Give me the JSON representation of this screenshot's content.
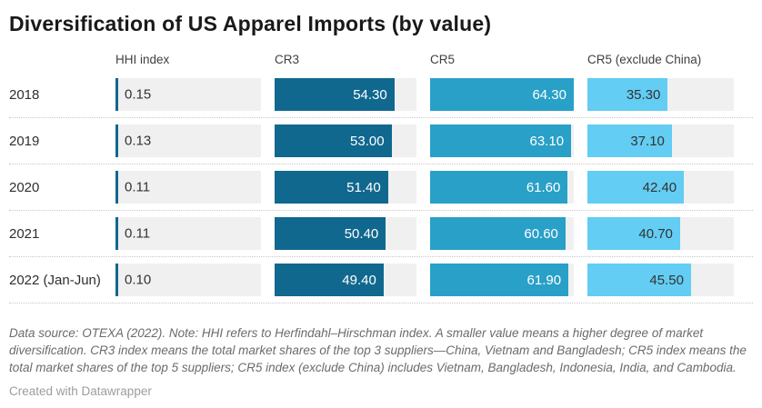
{
  "title": "Diversification of US Apparel Imports (by value)",
  "colors": {
    "cr3_bar": "#11688f",
    "cr5_bar": "#29a0c8",
    "cr5_ex_china_bar": "#63cdf3",
    "track": "#f0f0f0"
  },
  "table": {
    "headers": {
      "hhi": "HHI index",
      "cr3": "CR3",
      "cr5": "CR5",
      "cr5ex": "CR5 (exclude China)"
    },
    "rows": [
      {
        "label": "2018",
        "hhi": {
          "value": 0.15,
          "display": "0.15"
        },
        "cr3": {
          "value": 54.3,
          "display": "54.30"
        },
        "cr5": {
          "value": 64.3,
          "display": "64.30"
        },
        "cr5ex": {
          "value": 35.3,
          "display": "35.30"
        }
      },
      {
        "label": "2019",
        "hhi": {
          "value": 0.13,
          "display": "0.13"
        },
        "cr3": {
          "value": 53.0,
          "display": "53.00"
        },
        "cr5": {
          "value": 63.1,
          "display": "63.10"
        },
        "cr5ex": {
          "value": 37.1,
          "display": "37.10"
        }
      },
      {
        "label": "2020",
        "hhi": {
          "value": 0.11,
          "display": "0.11"
        },
        "cr3": {
          "value": 51.4,
          "display": "51.40"
        },
        "cr5": {
          "value": 61.6,
          "display": "61.60"
        },
        "cr5ex": {
          "value": 42.4,
          "display": "42.40"
        }
      },
      {
        "label": "2021",
        "hhi": {
          "value": 0.11,
          "display": "0.11"
        },
        "cr3": {
          "value": 50.4,
          "display": "50.40"
        },
        "cr5": {
          "value": 60.6,
          "display": "60.60"
        },
        "cr5ex": {
          "value": 40.7,
          "display": "40.70"
        }
      },
      {
        "label": "2022 (Jan-Jun)",
        "hhi": {
          "value": 0.1,
          "display": "0.10"
        },
        "cr3": {
          "value": 49.4,
          "display": "49.40"
        },
        "cr5": {
          "value": 61.9,
          "display": "61.90"
        },
        "cr5ex": {
          "value": 45.5,
          "display": "45.50"
        }
      }
    ]
  },
  "footer": {
    "note": "Data source: OTEXA (2022). Note: HHI refers to Herfindahl–Hirschman index. A smaller value means a higher degree of market diversification. CR3 index means the total market shares of the top 3 suppliers—China, Vietnam and Bangladesh; CR5 index means the total market shares of the top 5 suppliers; CR5 index (exclude China) includes Vietnam, Bangladesh, Indonesia, India, and Cambodia.",
    "attribution": "Created with Datawrapper"
  },
  "chart_data": {
    "type": "table",
    "title": "Diversification of US Apparel Imports (by value)",
    "columns": [
      "HHI index",
      "CR3",
      "CR5",
      "CR5 (exclude China)"
    ],
    "categories": [
      "2018",
      "2019",
      "2020",
      "2021",
      "2022 (Jan-Jun)"
    ],
    "series": [
      {
        "name": "HHI index",
        "values": [
          0.15,
          0.13,
          0.11,
          0.11,
          0.1
        ]
      },
      {
        "name": "CR3",
        "values": [
          54.3,
          53.0,
          51.4,
          50.4,
          49.4
        ]
      },
      {
        "name": "CR5",
        "values": [
          64.3,
          63.1,
          61.6,
          60.6,
          61.9
        ]
      },
      {
        "name": "CR5 (exclude China)",
        "values": [
          35.3,
          37.1,
          42.4,
          40.7,
          45.5
        ]
      }
    ],
    "bar_scale_max": 64.3,
    "layout": "horizontal in-cell bars on gray tracks, values labeled inside bars"
  }
}
